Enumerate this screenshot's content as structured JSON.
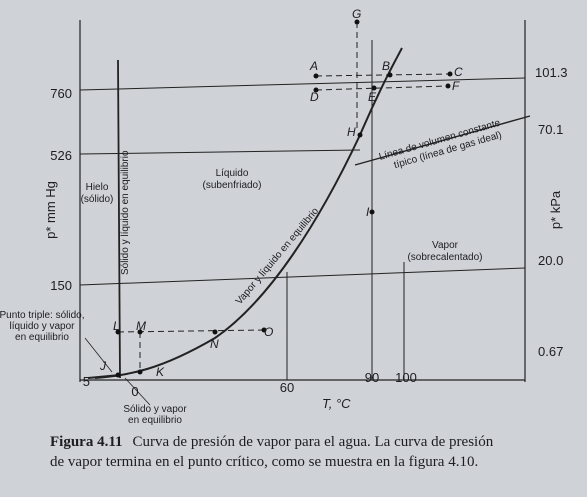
{
  "axes": {
    "left_label": "p* mm Hg",
    "right_label": "p* kPa",
    "bottom_label": "T, °C",
    "left_ticks": [
      "760",
      "526",
      "150",
      "5"
    ],
    "right_ticks": [
      "101.3",
      "70.1",
      "20.0",
      "0.67"
    ],
    "bottom_ticks": [
      "0",
      "60",
      "90",
      "100"
    ]
  },
  "regions": {
    "ice": [
      "Hielo",
      "(sólido)"
    ],
    "liquid": [
      "Líquido",
      "(subenfriado)"
    ],
    "vapor": [
      "Vapor",
      "(sobrecalentado)"
    ],
    "constant_volume": [
      "Línea de volumen constante",
      "típico (línea de gas ideal)"
    ],
    "solid_liquid": "Sólido y líquido en equilibrio",
    "vapor_liquid": "Vapor y líquido en equilibrio",
    "triple_point": [
      "Punto triple: sólido,",
      "líquido y vapor",
      "en equilibrio"
    ],
    "solid_vapor": [
      "Sólido y vapor",
      "en equilibrio"
    ]
  },
  "points": [
    "G",
    "A",
    "B",
    "C",
    "D",
    "E",
    "F",
    "H",
    "I",
    "L",
    "M",
    "N",
    "O",
    "J",
    "K"
  ],
  "caption": {
    "label": "Figura 4.11",
    "text": [
      "Curva de presión de vapor para el agua. La curva de presión",
      "de vapor termina en el punto crítico, como se muestra en la figura 4.10."
    ]
  }
}
